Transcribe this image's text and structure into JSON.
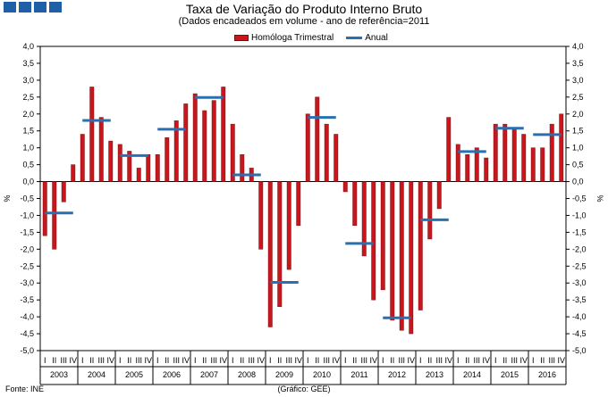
{
  "title": "Taxa de Variação do Produto Interno Bruto",
  "subtitle": "(Dados encadeados em  volume - ano de referência=2011",
  "source": "Fonte: INE",
  "credit": "(Gráfico: GEE)",
  "colors": {
    "bar": "#c8161d",
    "bar_edge": "#7a0a0e",
    "annual": "#2a6fb0",
    "logo": "#1f5fa8"
  },
  "chart_data": {
    "type": "bar",
    "title": "Taxa de Variação do Produto Interno Bruto",
    "subtitle": "(Dados encadeados em  volume - ano de referência=2011",
    "ylabel_left": "%",
    "ylabel_right": "%",
    "ylim": [
      -5.0,
      4.0
    ],
    "ytick_step": 0.5,
    "ytick_labels": [
      "4,0",
      "3,5",
      "3,0",
      "2,5",
      "2,0",
      "1,5",
      "1,0",
      "0,5",
      "0,0",
      "-0,5",
      "-1,0",
      "-1,5",
      "-2,0",
      "-2,5",
      "-3,0",
      "-3,5",
      "-4,0",
      "-4,5",
      "-5,0"
    ],
    "quarter_labels": [
      "I",
      "II",
      "III",
      "IV"
    ],
    "years": [
      "2003",
      "2004",
      "2005",
      "2006",
      "2007",
      "2008",
      "2009",
      "2010",
      "2011",
      "2012",
      "2013",
      "2014",
      "2015",
      "2016"
    ],
    "legend": [
      "Homóloga Trimestral",
      "Anual"
    ],
    "series": [
      {
        "name": "Homóloga Trimestral",
        "type": "bar",
        "values": [
          -1.6,
          -2.0,
          -0.6,
          0.5,
          1.4,
          2.8,
          1.9,
          1.2,
          1.1,
          0.9,
          0.4,
          0.8,
          0.8,
          1.3,
          1.8,
          2.3,
          2.6,
          2.1,
          2.4,
          2.8,
          1.7,
          0.8,
          0.4,
          -2.0,
          -4.3,
          -3.7,
          -2.6,
          -1.3,
          2.0,
          2.5,
          1.7,
          1.4,
          -0.3,
          -1.3,
          -2.2,
          -3.5,
          -3.2,
          -4.1,
          -4.4,
          -4.5,
          -3.8,
          -1.7,
          -0.8,
          1.9,
          1.1,
          0.8,
          1.0,
          0.7,
          1.7,
          1.7,
          1.6,
          1.4,
          1.0,
          1.0,
          1.7,
          2.0
        ]
      },
      {
        "name": "Anual",
        "type": "line",
        "values": [
          -0.93,
          1.81,
          0.77,
          1.55,
          2.49,
          0.2,
          -2.98,
          1.9,
          -1.83,
          -4.03,
          -1.13,
          0.89,
          1.58,
          1.39
        ]
      }
    ]
  }
}
